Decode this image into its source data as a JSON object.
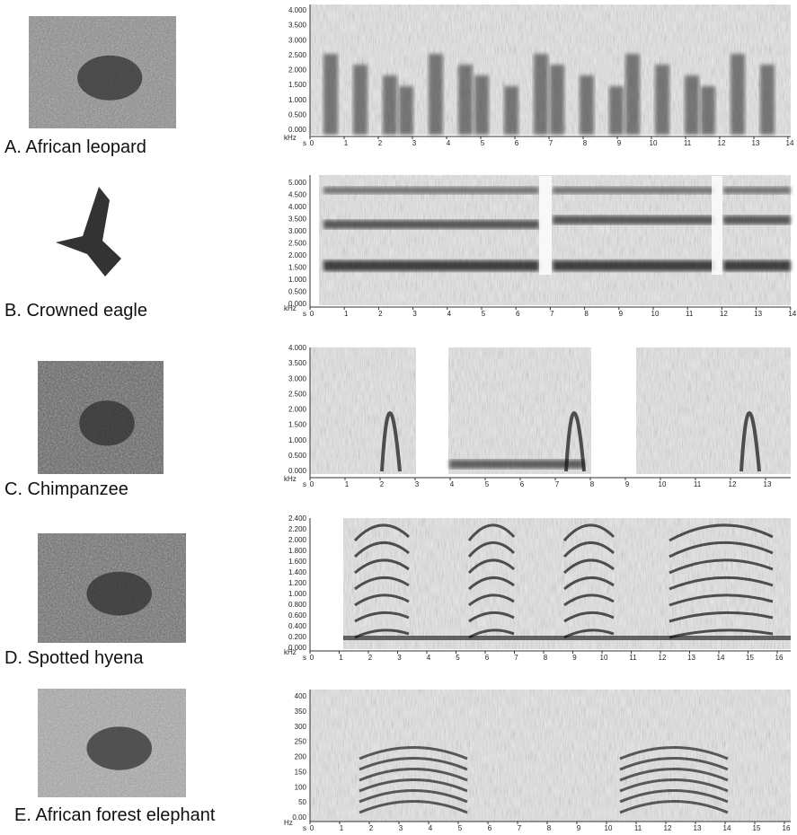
{
  "panels": [
    {
      "label": "A. African leopard",
      "y_unit": "kHz",
      "x_unit": "s",
      "yticks": [
        "4.000",
        "3.500",
        "3.000",
        "2.500",
        "2.000",
        "1.500",
        "1.000",
        "0.500",
        "0.000"
      ],
      "xticks": [
        0,
        1,
        2,
        3,
        4,
        5,
        6,
        7,
        8,
        9,
        10,
        11,
        12,
        13,
        14
      ]
    },
    {
      "label": "B. Crowned eagle",
      "y_unit": "kHz",
      "x_unit": "s",
      "yticks": [
        "5.000",
        "4.500",
        "4.000",
        "3.500",
        "3.000",
        "2.500",
        "2.000",
        "1.500",
        "1.000",
        "0.500",
        "0.000"
      ],
      "xticks": [
        0,
        1,
        2,
        3,
        4,
        5,
        6,
        7,
        8,
        9,
        10,
        11,
        12,
        13,
        14
      ]
    },
    {
      "label": "C.  Chimpanzee",
      "y_unit": "kHz",
      "x_unit": "s",
      "yticks": [
        "4.000",
        "3.500",
        "3.000",
        "2.500",
        "2.000",
        "1.500",
        "1.000",
        "0.500",
        "0.000"
      ],
      "xticks": [
        0,
        1,
        2,
        3,
        4,
        5,
        6,
        7,
        8,
        9,
        10,
        11,
        12,
        13
      ]
    },
    {
      "label": "D. Spotted hyena",
      "y_unit": "kHz",
      "x_unit": "s",
      "yticks": [
        "2.400",
        "2.200",
        "2.000",
        "1.800",
        "1.600",
        "1.400",
        "1.200",
        "1.000",
        "0.800",
        "0.600",
        "0.400",
        "0.200",
        "0.000"
      ],
      "xticks": [
        0,
        1,
        2,
        3,
        4,
        5,
        6,
        7,
        8,
        9,
        10,
        11,
        12,
        13,
        14,
        15,
        16
      ]
    },
    {
      "label": "E. African forest elephant",
      "y_unit": "Hz",
      "x_unit": "s",
      "yticks": [
        "400",
        "350",
        "300",
        "250",
        "200",
        "150",
        "100",
        "50",
        "0.00"
      ],
      "xticks": [
        0,
        1,
        2,
        3,
        4,
        5,
        6,
        7,
        8,
        9,
        10,
        11,
        12,
        13,
        14,
        15,
        16
      ]
    }
  ]
}
